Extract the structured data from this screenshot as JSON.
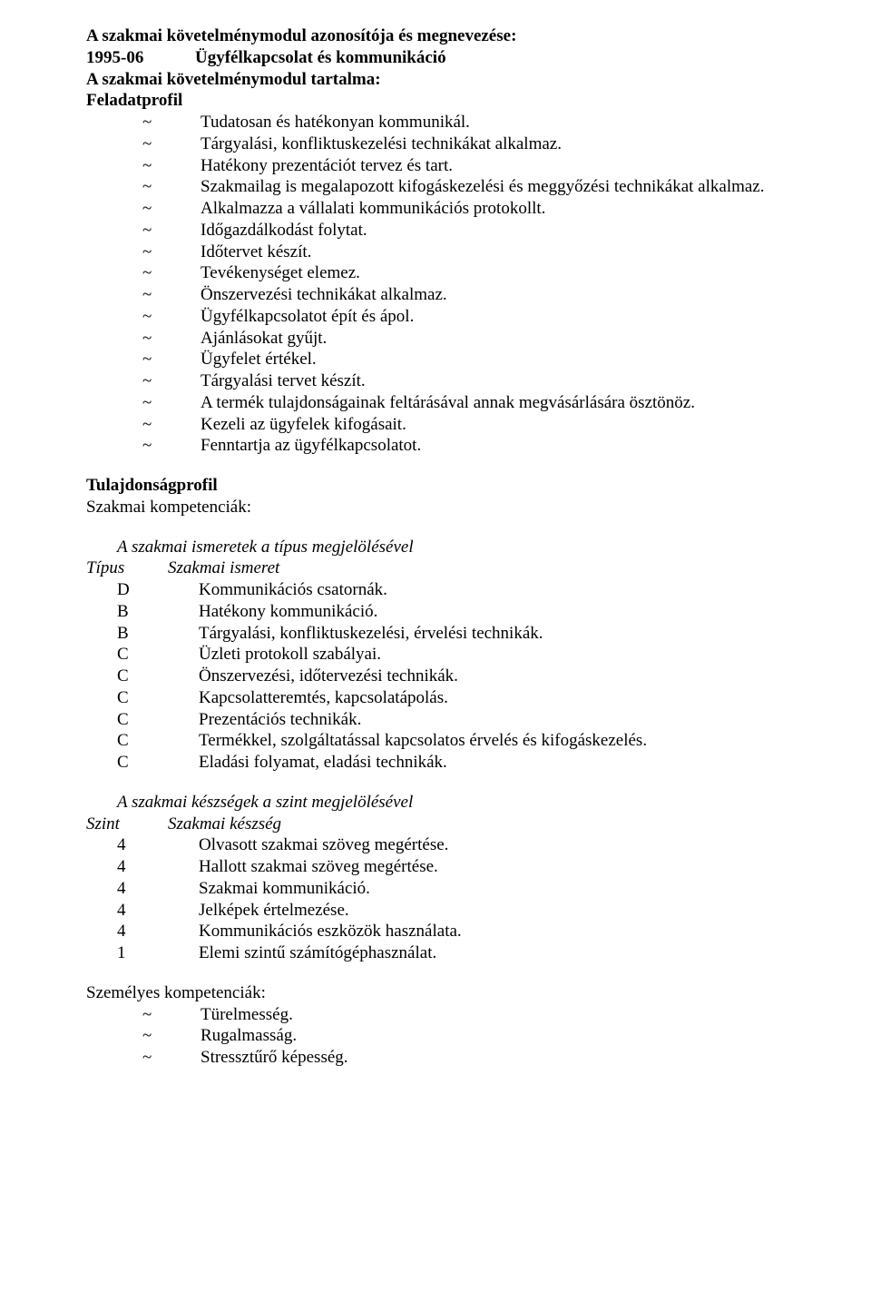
{
  "header": {
    "line1": "A szakmai követelménymodul azonosítója és megnevezése:",
    "code": "1995-06",
    "title": "Ügyfélkapcsolat és kommunikáció",
    "line3": "A szakmai követelménymodul tartalma:",
    "line4": "Feladatprofil"
  },
  "tasks": [
    "Tudatosan és hatékonyan kommunikál.",
    "Tárgyalási, konfliktuskezelési technikákat alkalmaz.",
    "Hatékony prezentációt tervez és tart.",
    "Szakmailag is megalapozott kifogáskezelési és meggyőzési technikákat alkalmaz.",
    "Alkalmazza a vállalati kommunikációs protokollt.",
    "Időgazdálkodást folytat.",
    "Időtervet készít.",
    "Tevékenységet elemez.",
    "Önszervezési technikákat alkalmaz.",
    "Ügyfélkapcsolatot épít és ápol.",
    "Ajánlásokat gyűjt.",
    "Ügyfelet értékel.",
    "Tárgyalási tervet készít.",
    "A termék tulajdonságainak feltárásával annak megvásárlására ösztönöz.",
    "Kezeli az ügyfelek kifogásait.",
    "Fenntartja az ügyfélkapcsolatot."
  ],
  "profile": {
    "heading": "Tulajdonságprofil",
    "sub": "Szakmai kompetenciák:",
    "knowledge_title": "A szakmai ismeretek a típus megjelölésével",
    "knowledge_header_type": "Típus",
    "knowledge_header_label": "Szakmai ismeret",
    "knowledge": [
      {
        "t": "D",
        "l": "Kommunikációs csatornák."
      },
      {
        "t": "B",
        "l": "Hatékony kommunikáció."
      },
      {
        "t": "B",
        "l": "Tárgyalási, konfliktuskezelési, érvelési technikák."
      },
      {
        "t": "C",
        "l": "Üzleti protokoll szabályai."
      },
      {
        "t": "C",
        "l": "Önszervezési, időtervezési technikák."
      },
      {
        "t": "C",
        "l": "Kapcsolatteremtés, kapcsolatápolás."
      },
      {
        "t": "C",
        "l": "Prezentációs technikák."
      },
      {
        "t": "C",
        "l": "Termékkel, szolgáltatással kapcsolatos érvelés és kifogáskezelés."
      },
      {
        "t": "C",
        "l": "Eladási folyamat, eladási technikák."
      }
    ],
    "skills_title": "A szakmai készségek a szint megjelölésével",
    "skills_header_type": "Szint",
    "skills_header_label": "Szakmai készség",
    "skills": [
      {
        "t": "4",
        "l": "Olvasott szakmai szöveg megértése."
      },
      {
        "t": "4",
        "l": "Hallott szakmai szöveg megértése."
      },
      {
        "t": "4",
        "l": "Szakmai kommunikáció."
      },
      {
        "t": "4",
        "l": "Jelképek értelmezése."
      },
      {
        "t": "4",
        "l": "Kommunikációs eszközök használata."
      },
      {
        "t": "1",
        "l": "Elemi szintű számítógéphasználat."
      }
    ],
    "personal_heading": "Személyes kompetenciák:",
    "personal": [
      "Türelmesség.",
      "Rugalmasság.",
      "Stressztűrő képesség."
    ]
  }
}
